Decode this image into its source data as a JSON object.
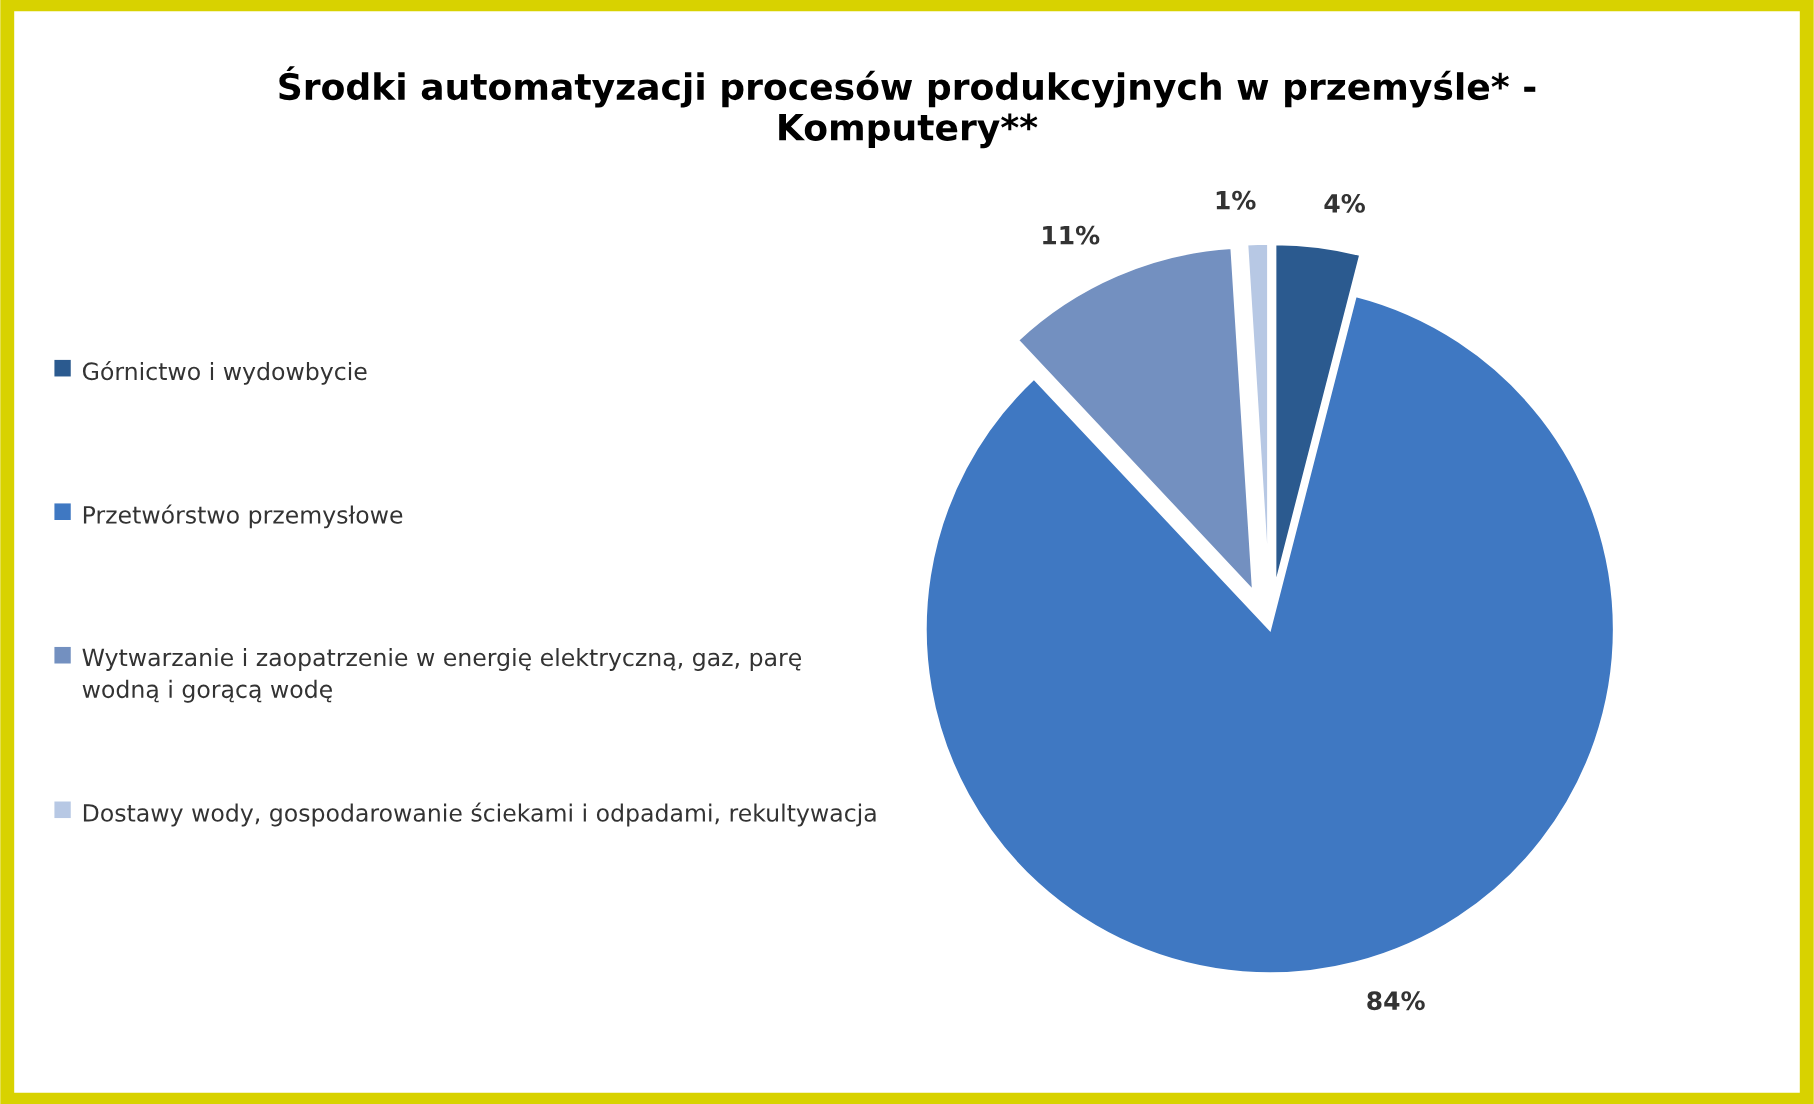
{
  "chart_data": {
    "type": "pie",
    "title": "Środki automatyzacji procesów produkcyjnych w przemyśle* -\nKomputery**",
    "categories": [
      "Górnictwo i wydowbycie",
      "Przetwórstwo przemysłowe",
      "Wytwarzanie i zaopatrzenie w energię elektryczną, gaz, parę wodną i gorącą wodę",
      "Dostawy wody, gospodarowanie ściekami i odpadami, rekultywacja"
    ],
    "values": [
      4,
      84,
      11,
      1
    ],
    "colors": [
      "#2b5a8f",
      "#3f78c2",
      "#7390c0",
      "#b7c8e4"
    ],
    "value_labels": [
      "4%",
      "84%",
      "11%",
      "1%"
    ],
    "legend": "left"
  }
}
